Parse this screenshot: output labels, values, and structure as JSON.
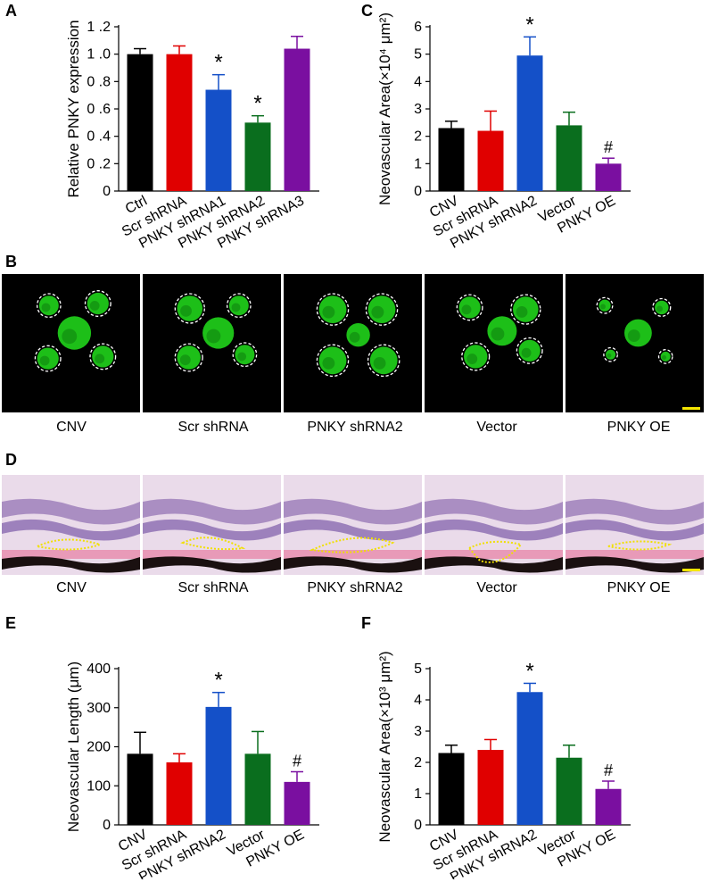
{
  "panels": {
    "A": "A",
    "B": "B",
    "C": "C",
    "D": "D",
    "E": "E",
    "F": "F"
  },
  "chart_data": [
    {
      "id": "A",
      "type": "bar",
      "categories": [
        "Ctrl",
        "Scr shRNA",
        "PNKY shRNA1",
        "PNKY shRNA2",
        "PNKY shRNA3"
      ],
      "values": [
        1.0,
        1.0,
        0.74,
        0.5,
        1.04
      ],
      "errors": [
        0.04,
        0.06,
        0.11,
        0.05,
        0.09
      ],
      "colors": [
        "#000000",
        "#e00000",
        "#1450c8",
        "#0a6e1e",
        "#7a0fa0"
      ],
      "marks": [
        "",
        "",
        "*",
        "*",
        ""
      ],
      "ylabel": "Relative PNKY expression",
      "yticks": [
        "0",
        "0 .2",
        "0 .4",
        "0 .6",
        "0 .8",
        "1 .0",
        "1 .2"
      ],
      "ylim": [
        0,
        1.2
      ]
    },
    {
      "id": "C",
      "type": "bar",
      "categories": [
        "CNV",
        "Scr shRNA",
        "PNKY shRNA2",
        "Vector",
        "PNKY OE"
      ],
      "values": [
        2.3,
        2.2,
        4.95,
        2.4,
        1.0
      ],
      "errors": [
        0.25,
        0.72,
        0.68,
        0.48,
        0.2
      ],
      "colors": [
        "#000000",
        "#e00000",
        "#1450c8",
        "#0a6e1e",
        "#7a0fa0"
      ],
      "marks": [
        "",
        "",
        "*",
        "",
        "#"
      ],
      "ylabel": "Neovascular Area(×10⁴ μm²)",
      "yticks": [
        "0",
        "1",
        "2",
        "3",
        "4",
        "5",
        "6"
      ],
      "ylim": [
        0,
        6
      ]
    },
    {
      "id": "E",
      "type": "bar",
      "categories": [
        "CNV",
        "Scr shRNA",
        "PNKY shRNA2",
        "Vector",
        "PNKY OE"
      ],
      "values": [
        182,
        160,
        302,
        182,
        110
      ],
      "errors": [
        55,
        22,
        37,
        57,
        26
      ],
      "colors": [
        "#000000",
        "#e00000",
        "#1450c8",
        "#0a6e1e",
        "#7a0fa0"
      ],
      "marks": [
        "",
        "",
        "*",
        "",
        "#"
      ],
      "ylabel": "Neovascular Length (μm)",
      "yticks": [
        "0",
        "100",
        "200",
        "300",
        "400"
      ],
      "ylim": [
        0,
        400
      ]
    },
    {
      "id": "F",
      "type": "bar",
      "categories": [
        "CNV",
        "Scr shRNA",
        "PNKY shRNA2",
        "Vector",
        "PNKY OE"
      ],
      "values": [
        2.3,
        2.4,
        4.25,
        2.15,
        1.15
      ],
      "errors": [
        0.25,
        0.33,
        0.28,
        0.4,
        0.25
      ],
      "colors": [
        "#000000",
        "#e00000",
        "#1450c8",
        "#0a6e1e",
        "#7a0fa0"
      ],
      "marks": [
        "",
        "",
        "*",
        "",
        "#"
      ],
      "ylabel": "Neovascular Area(×10³ μm²)",
      "yticks": [
        "0",
        "1",
        "2",
        "3",
        "4",
        "5"
      ],
      "ylim": [
        0,
        5
      ]
    }
  ],
  "images_B": {
    "captions": [
      "CNV",
      "Scr shRNA",
      "PNKY shRNA2",
      "Vector",
      "PNKY OE"
    ],
    "background": "#000000",
    "fluorescence_color": "#22e01c",
    "scale_bar_color": "#f5e600"
  },
  "images_D": {
    "captions": [
      "CNV",
      "Scr shRNA",
      "PNKY shRNA2",
      "Vector",
      "PNKY OE"
    ],
    "tissue_color": "#d7b9d9",
    "outline_color": "#f0e000",
    "scale_bar_color": "#f5e600"
  }
}
